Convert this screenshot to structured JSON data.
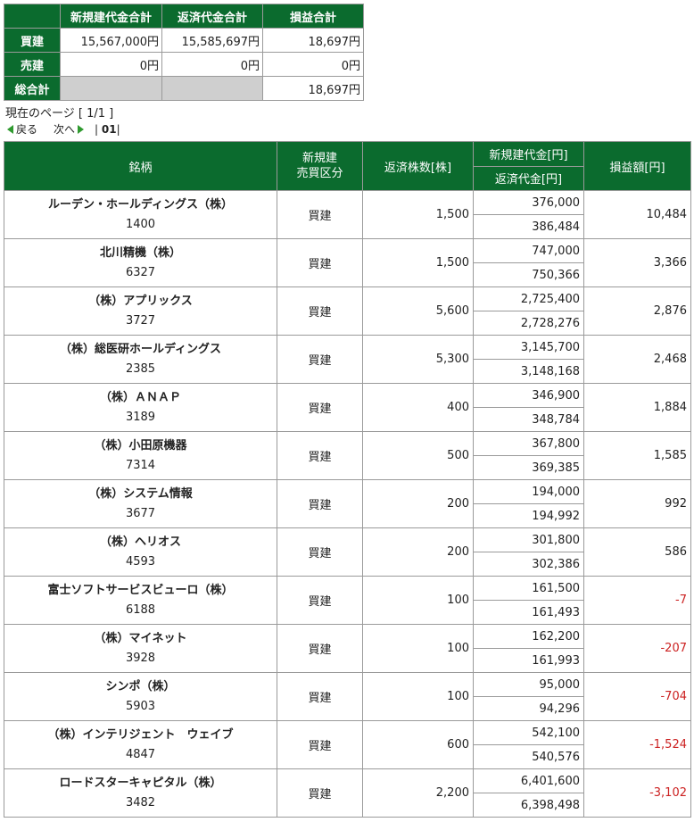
{
  "summary": {
    "headers": [
      "新規建代金合計",
      "返済代金合計",
      "損益合計"
    ],
    "rows": [
      {
        "label": "買建",
        "new_total": "15,567,000円",
        "repay_total": "15,585,697円",
        "pl_total": "18,697円"
      },
      {
        "label": "売建",
        "new_total": "0円",
        "repay_total": "0円",
        "pl_total": "0円"
      },
      {
        "label": "総合計",
        "new_total": "",
        "repay_total": "",
        "pl_total": "18,697円"
      }
    ]
  },
  "pager": {
    "current_page": "現在のページ [ 1/1 ]",
    "prev": "戻る",
    "next": "次へ",
    "page_sep_left": "|",
    "page_number": "01",
    "page_sep_right": "|"
  },
  "table": {
    "headers": {
      "name": "銘柄",
      "side_line1": "新規建",
      "side_line2": "売買区分",
      "qty": "返済株数[株]",
      "amount_new": "新規建代金[円]",
      "amount_repay": "返済代金[円]",
      "pl": "損益額[円]"
    },
    "rows": [
      {
        "name": "ルーデン・ホールディングス（株）",
        "code": "1400",
        "side": "買建",
        "qty": "1,500",
        "new_amount": "376,000",
        "repay_amount": "386,484",
        "pl": "10,484",
        "negative": false
      },
      {
        "name": "北川精機（株）",
        "code": "6327",
        "side": "買建",
        "qty": "1,500",
        "new_amount": "747,000",
        "repay_amount": "750,366",
        "pl": "3,366",
        "negative": false
      },
      {
        "name": "（株）アプリックス",
        "code": "3727",
        "side": "買建",
        "qty": "5,600",
        "new_amount": "2,725,400",
        "repay_amount": "2,728,276",
        "pl": "2,876",
        "negative": false
      },
      {
        "name": "（株）総医研ホールディングス",
        "code": "2385",
        "side": "買建",
        "qty": "5,300",
        "new_amount": "3,145,700",
        "repay_amount": "3,148,168",
        "pl": "2,468",
        "negative": false
      },
      {
        "name": "（株）ＡＮＡＰ",
        "code": "3189",
        "side": "買建",
        "qty": "400",
        "new_amount": "346,900",
        "repay_amount": "348,784",
        "pl": "1,884",
        "negative": false
      },
      {
        "name": "（株）小田原機器",
        "code": "7314",
        "side": "買建",
        "qty": "500",
        "new_amount": "367,800",
        "repay_amount": "369,385",
        "pl": "1,585",
        "negative": false
      },
      {
        "name": "（株）システム情報",
        "code": "3677",
        "side": "買建",
        "qty": "200",
        "new_amount": "194,000",
        "repay_amount": "194,992",
        "pl": "992",
        "negative": false
      },
      {
        "name": "（株）ヘリオス",
        "code": "4593",
        "side": "買建",
        "qty": "200",
        "new_amount": "301,800",
        "repay_amount": "302,386",
        "pl": "586",
        "negative": false
      },
      {
        "name": "富士ソフトサービスビューロ（株）",
        "code": "6188",
        "side": "買建",
        "qty": "100",
        "new_amount": "161,500",
        "repay_amount": "161,493",
        "pl": "-7",
        "negative": true
      },
      {
        "name": "（株）マイネット",
        "code": "3928",
        "side": "買建",
        "qty": "100",
        "new_amount": "162,200",
        "repay_amount": "161,993",
        "pl": "-207",
        "negative": true
      },
      {
        "name": "シンポ（株）",
        "code": "5903",
        "side": "買建",
        "qty": "100",
        "new_amount": "95,000",
        "repay_amount": "94,296",
        "pl": "-704",
        "negative": true
      },
      {
        "name": "（株）インテリジェント　ウェイブ",
        "code": "4847",
        "side": "買建",
        "qty": "600",
        "new_amount": "542,100",
        "repay_amount": "540,576",
        "pl": "-1,524",
        "negative": true
      },
      {
        "name": "ロードスターキャピタル（株）",
        "code": "3482",
        "side": "買建",
        "qty": "2,200",
        "new_amount": "6,401,600",
        "repay_amount": "6,398,498",
        "pl": "-3,102",
        "negative": true
      }
    ]
  },
  "colors": {
    "header_green": "#0b6b2e",
    "negative_red": "#cc2222",
    "arrow_green": "#2f9a2f"
  }
}
